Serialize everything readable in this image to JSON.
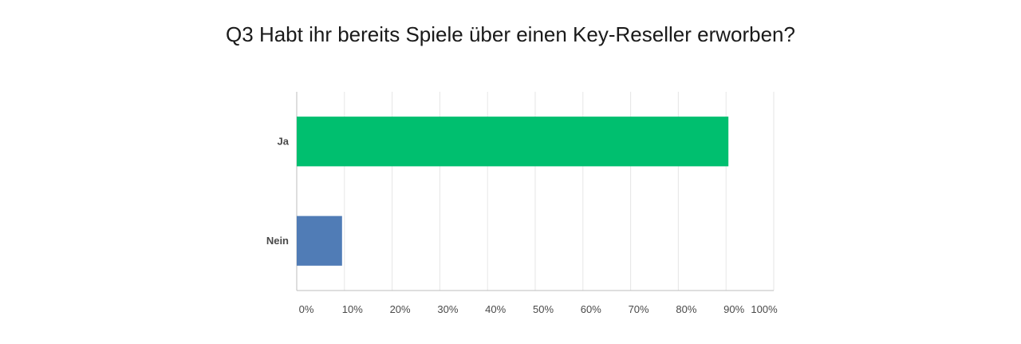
{
  "chart_data": {
    "type": "bar",
    "orientation": "horizontal",
    "title": "Q3 Habt ihr bereits Spiele über einen Key-Reseller erworben?",
    "categories": [
      "Ja",
      "Nein"
    ],
    "values": [
      90.5,
      9.5
    ],
    "xlim": [
      0,
      100
    ],
    "xticks": [
      "0%",
      "10%",
      "20%",
      "30%",
      "40%",
      "50%",
      "60%",
      "70%",
      "80%",
      "90%",
      "100%"
    ],
    "grid": true,
    "colors": [
      "#00bf6f",
      "#507cb6"
    ]
  }
}
